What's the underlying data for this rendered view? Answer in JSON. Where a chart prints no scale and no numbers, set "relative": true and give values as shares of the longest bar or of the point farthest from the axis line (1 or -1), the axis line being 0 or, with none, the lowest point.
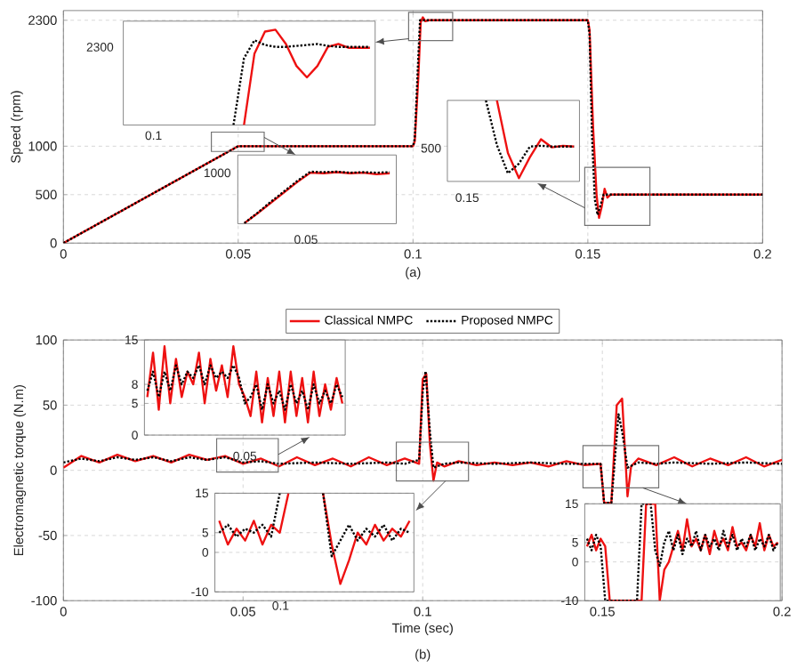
{
  "chart_data": [
    {
      "type": "line",
      "ylabel": "Speed (rpm)",
      "annotations": [
        "(a)"
      ],
      "xlim": [
        0,
        0.2
      ],
      "ylim": [
        0,
        2400
      ],
      "xticks": [
        0,
        0.05,
        0.1,
        0.15,
        0.2
      ],
      "yticks": [
        0,
        500,
        1000,
        2300
      ],
      "grid": true,
      "series": [
        {
          "color": "#ee1111",
          "line_style": "solid",
          "x": [
            0,
            0.05,
            0.1,
            0.1005,
            0.1015,
            0.1022,
            0.1028,
            0.1035,
            0.1045,
            0.15,
            0.1505,
            0.1515,
            0.1525,
            0.1532,
            0.154,
            0.1548,
            0.1556,
            0.1565,
            0.2
          ],
          "values": [
            0,
            1000,
            1000,
            1050,
            1700,
            2280,
            2330,
            2290,
            2300,
            2300,
            2200,
            1200,
            500,
            260,
            380,
            560,
            470,
            500,
            500
          ]
        },
        {
          "color": "#000000",
          "line_style": "dotted",
          "x": [
            0,
            0.05,
            0.1,
            0.1005,
            0.1013,
            0.102,
            0.1028,
            0.1035,
            0.15,
            0.1505,
            0.1512,
            0.152,
            0.1528,
            0.1537,
            0.1545,
            0.2
          ],
          "values": [
            0,
            1000,
            1000,
            1080,
            1750,
            2300,
            2300,
            2300,
            2300,
            2150,
            1100,
            450,
            290,
            400,
            500,
            500
          ]
        }
      ]
    },
    {
      "type": "line",
      "relative": true,
      "annotations": [
        "0.1",
        "2300"
      ],
      "categories": [
        null,
        null,
        null,
        null,
        null,
        null,
        null,
        null,
        null,
        null,
        null,
        null,
        null,
        null,
        null,
        null,
        null,
        null,
        null,
        null,
        null,
        null,
        null,
        null
      ],
      "series": [
        {
          "color": "#ee1111",
          "line_style": "solid",
          "values": [
            null,
            null,
            null,
            null,
            null,
            null,
            null,
            null,
            null,
            null,
            null,
            0,
            0.75,
            0.98,
            1,
            0.85,
            0.62,
            0.5,
            0.62,
            0.82,
            0.85,
            0.81,
            0.81,
            0.81
          ]
        },
        {
          "color": "#000000",
          "line_style": "dotted",
          "values": [
            null,
            null,
            null,
            null,
            null,
            null,
            null,
            null,
            null,
            null,
            0,
            0.7,
            0.89,
            0.84,
            0.82,
            0.82,
            0.83,
            0.84,
            0.85,
            0.83,
            0.82,
            0.82,
            0.82,
            0.82
          ]
        }
      ]
    },
    {
      "type": "line",
      "relative": true,
      "annotations": [
        "0.05",
        "1000"
      ],
      "categories": [
        null,
        null,
        null,
        null,
        null,
        null,
        null,
        null,
        null,
        null,
        null,
        null
      ],
      "series": [
        {
          "color": "#ee1111",
          "line_style": "solid",
          "values": [
            0.01,
            0.2,
            0.4,
            0.6,
            0.8,
            0.98,
            0.97,
            0.99,
            0.97,
            0.98,
            0.95,
            0.97
          ]
        },
        {
          "color": "#000000",
          "line_style": "dotted",
          "values": [
            0.01,
            0.21,
            0.42,
            0.62,
            0.82,
            1,
            0.99,
            1,
            0.98,
            0.99,
            0.98,
            0.99
          ]
        }
      ]
    },
    {
      "type": "line",
      "relative": true,
      "annotations": [
        "0.15",
        "500"
      ],
      "categories": [
        null,
        null,
        null,
        null,
        null,
        null,
        null,
        null,
        null,
        null,
        null,
        null
      ],
      "series": [
        {
          "color": "#ee1111",
          "line_style": "solid",
          "values": [
            null,
            null,
            null,
            null,
            1,
            0.35,
            0.04,
            0.3,
            0.52,
            0.42,
            0.44,
            0.43
          ]
        },
        {
          "color": "#000000",
          "line_style": "dotted",
          "values": [
            null,
            null,
            null,
            1,
            0.45,
            0.1,
            0.22,
            0.43,
            0.44,
            0.43,
            0.43,
            0.43
          ]
        }
      ]
    },
    {
      "type": "line",
      "xlabel": "Time (sec)",
      "ylabel": "Electromagnetic torque (N.m)",
      "annotations": [
        "(b)"
      ],
      "legend": "top",
      "xlim": [
        0,
        0.2
      ],
      "ylim": [
        -100,
        100
      ],
      "xticks": [
        0,
        0.05,
        0.1,
        0.15,
        0.2
      ],
      "yticks": [
        -100,
        -50,
        0,
        50,
        100
      ],
      "grid": true,
      "series": [
        {
          "name": "Classical NMPC",
          "color": "#ee1111",
          "line_style": "solid",
          "x": [
            0,
            0.005,
            0.01,
            0.015,
            0.02,
            0.025,
            0.03,
            0.035,
            0.04,
            0.045,
            0.05,
            0.055,
            0.06,
            0.065,
            0.07,
            0.075,
            0.08,
            0.085,
            0.09,
            0.095,
            0.099,
            0.1,
            0.101,
            0.102,
            0.103,
            0.104,
            0.106,
            0.11,
            0.115,
            0.12,
            0.125,
            0.13,
            0.135,
            0.14,
            0.145,
            0.1495,
            0.1505,
            0.1525,
            0.154,
            0.1555,
            0.157,
            0.158,
            0.16,
            0.165,
            0.17,
            0.175,
            0.18,
            0.185,
            0.19,
            0.195,
            0.2
          ],
          "values": [
            2,
            11,
            6,
            12,
            7,
            11,
            6,
            12,
            8,
            11,
            5,
            9,
            3,
            10,
            4,
            9,
            3,
            10,
            4,
            9,
            5,
            70,
            74,
            20,
            -8,
            6,
            3,
            7,
            4,
            6,
            4,
            6,
            3,
            7,
            4,
            5,
            -25,
            -25,
            50,
            55,
            -20,
            3,
            9,
            4,
            10,
            3,
            9,
            4,
            10,
            3,
            8
          ]
        },
        {
          "name": "Proposed NMPC",
          "color": "#000000",
          "line_style": "dotted",
          "x": [
            0,
            0.005,
            0.01,
            0.015,
            0.02,
            0.025,
            0.03,
            0.035,
            0.04,
            0.045,
            0.05,
            0.055,
            0.06,
            0.07,
            0.08,
            0.09,
            0.095,
            0.099,
            0.1,
            0.1008,
            0.102,
            0.103,
            0.106,
            0.11,
            0.12,
            0.13,
            0.14,
            0.1495,
            0.1505,
            0.1525,
            0.1545,
            0.1555,
            0.157,
            0.16,
            0.165,
            0.17,
            0.18,
            0.19,
            0.2
          ],
          "values": [
            6,
            9,
            7,
            10,
            8,
            10,
            7,
            10,
            8,
            10,
            6,
            7,
            5,
            6,
            5,
            6,
            5,
            8,
            60,
            76,
            30,
            2,
            5,
            6,
            5,
            6,
            5,
            5,
            -25,
            -25,
            43,
            30,
            2,
            6,
            5,
            6,
            5,
            6,
            5
          ]
        }
      ]
    },
    {
      "type": "line",
      "annotations": [
        "0.05"
      ],
      "ylim": [
        0,
        15
      ],
      "yticks": [
        0,
        5,
        8,
        15
      ],
      "grid": "y",
      "categories": [
        null,
        null,
        null,
        null,
        null,
        null,
        null,
        null,
        null,
        null,
        null,
        null,
        null,
        null,
        null,
        null,
        null,
        null,
        null,
        null,
        null,
        null,
        null,
        null,
        null,
        null,
        null,
        null,
        null,
        null,
        null,
        null,
        null,
        null,
        null
      ],
      "series": [
        {
          "color": "#ee1111",
          "line_style": "solid",
          "values": [
            6,
            13,
            4,
            14,
            5,
            12,
            6,
            10,
            8,
            13,
            5,
            12,
            7,
            11,
            6,
            14,
            8,
            6,
            3,
            10,
            2,
            9,
            3,
            10,
            2,
            10,
            3,
            9,
            2,
            10,
            3,
            8,
            4,
            9,
            5
          ]
        },
        {
          "color": "#000000",
          "line_style": "dotted",
          "values": [
            7,
            10,
            6,
            10,
            7,
            11,
            8,
            10,
            9,
            11,
            8,
            11,
            9,
            10,
            9,
            11,
            9,
            5,
            6,
            8,
            4,
            8,
            5,
            7,
            4,
            8,
            5,
            7,
            4,
            8,
            5,
            7,
            5,
            8,
            6
          ]
        }
      ]
    },
    {
      "type": "line",
      "annotations": [
        "0.1"
      ],
      "ylim": [
        -10,
        15
      ],
      "yticks": [
        -10,
        0,
        5,
        15
      ],
      "grid": "y",
      "categories": [
        null,
        null,
        null,
        null,
        null,
        null,
        null,
        null,
        null,
        null,
        null,
        null,
        null,
        null,
        null,
        null,
        null,
        null,
        null,
        null,
        null,
        null,
        null
      ],
      "series": [
        {
          "color": "#ee1111",
          "line_style": "solid",
          "values": [
            8,
            2,
            6,
            3,
            8,
            2,
            7,
            5,
            15,
            null,
            null,
            null,
            15,
            2,
            -8,
            -2,
            5,
            2,
            7,
            3,
            6,
            4,
            8
          ]
        },
        {
          "color": "#000000",
          "line_style": "dotted",
          "values": [
            5,
            7,
            4,
            6,
            5,
            7,
            4,
            15,
            null,
            null,
            null,
            null,
            15,
            -1,
            3,
            7,
            3,
            6,
            4,
            7,
            3,
            6,
            5
          ]
        }
      ]
    },
    {
      "type": "line",
      "ylim": [
        -10,
        15
      ],
      "yticks": [
        -10,
        0,
        5,
        15
      ],
      "grid": "y",
      "categories": [
        null,
        null,
        null,
        null,
        null,
        null,
        null,
        null,
        null,
        null,
        null,
        null,
        null,
        null,
        null,
        null,
        null,
        null,
        null,
        null,
        null,
        null,
        null,
        null,
        null,
        null,
        null,
        null,
        null,
        null,
        null,
        null,
        null,
        null,
        null,
        null,
        null,
        null,
        null,
        null,
        null,
        null,
        null
      ],
      "series": [
        {
          "color": "#ee1111",
          "line_style": "solid",
          "values": [
            4,
            7,
            3,
            6,
            4,
            -10,
            -10,
            -10,
            -10,
            -10,
            -10,
            -10,
            -10,
            15,
            15,
            15,
            -10,
            -2,
            0,
            4,
            8,
            3,
            11,
            4,
            6,
            3,
            7,
            2,
            8,
            4,
            6,
            3,
            9,
            4,
            5,
            3,
            7,
            4,
            10,
            3,
            7,
            4,
            5
          ]
        },
        {
          "color": "#000000",
          "line_style": "dotted",
          "values": [
            6,
            3,
            7,
            4,
            -10,
            -10,
            -10,
            -10,
            -10,
            -10,
            -10,
            -10,
            15,
            15,
            15,
            3,
            -1,
            5,
            8,
            3,
            7,
            2,
            6,
            4,
            8,
            3,
            7,
            4,
            6,
            3,
            8,
            4,
            7,
            3,
            6,
            4,
            7,
            3,
            6,
            4,
            7,
            3,
            5
          ]
        }
      ]
    }
  ]
}
